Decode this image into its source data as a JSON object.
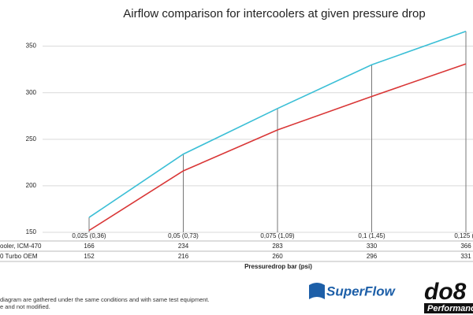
{
  "chart_data": {
    "type": "line",
    "title": "Airflow comparison for intercoolers at given pressure drop",
    "x_label": "Pressuredrop bar (psi)",
    "categories": [
      "0,025 (0,36)",
      "0,05 (0,73)",
      "0,075 (1,09)",
      "0,1 (1,45)",
      "0,125 (1"
    ],
    "series": [
      {
        "name": "ooler, ICM-470",
        "color": "#3bbfd6",
        "values": [
          166,
          234,
          283,
          330,
          366
        ]
      },
      {
        "name": "0 Turbo OEM",
        "color": "#d93636",
        "values": [
          152,
          216,
          260,
          296,
          331
        ]
      }
    ],
    "ylim": [
      150,
      370
    ],
    "yticks": [
      150,
      200,
      250,
      300,
      350
    ],
    "grid": true,
    "footnote": [
      "diagram are gathered under the same conditions and with same test equipment.",
      "e and not modified."
    ],
    "logos": [
      "SuperFlow",
      "do8",
      "Performanc"
    ]
  }
}
